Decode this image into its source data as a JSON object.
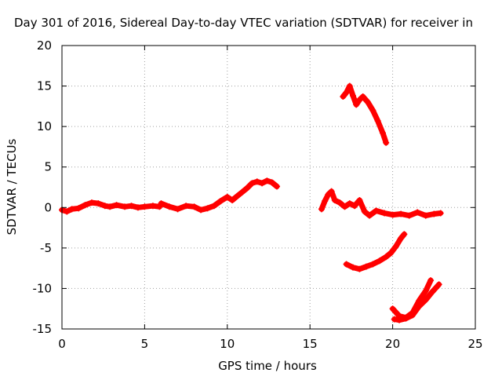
{
  "chart_data": {
    "type": "scatter",
    "title": "Day 301 of 2016, Sidereal Day-to-day VTEC variation (SDTVAR) for receiver in",
    "xlabel": "GPS time / hours",
    "ylabel": "SDTVAR / TECUs",
    "xlim": [
      0,
      25
    ],
    "ylim": [
      -15,
      20
    ],
    "xticks": [
      0,
      5,
      10,
      15,
      20,
      25
    ],
    "yticks": [
      -15,
      -10,
      -5,
      0,
      5,
      10,
      15,
      20
    ],
    "grid": true,
    "legend": "none",
    "color": "#ff0000",
    "series": [
      {
        "x": [
          0,
          0.3,
          0.6,
          1.0,
          1.4,
          1.8,
          2.2,
          2.6,
          2.9,
          3.3,
          3.8,
          4.2,
          4.6,
          5.0,
          5.5,
          5.9
        ],
        "y": [
          -0.3,
          -0.5,
          -0.2,
          -0.1,
          0.3,
          0.6,
          0.5,
          0.2,
          0.1,
          0.3,
          0.1,
          0.2,
          0.0,
          0.1,
          0.2,
          0.1
        ]
      },
      {
        "x": [
          6.0,
          6.5,
          7.0,
          7.5,
          8.0,
          8.4,
          8.8,
          9.2,
          9.6,
          10.0,
          10.3,
          10.6,
          10.9,
          11.2,
          11.5,
          11.8,
          12.1,
          12.4,
          12.7,
          13.0
        ],
        "y": [
          0.5,
          0.1,
          -0.2,
          0.2,
          0.1,
          -0.3,
          -0.1,
          0.2,
          0.8,
          1.3,
          0.9,
          1.4,
          1.9,
          2.4,
          3.0,
          3.2,
          3.0,
          3.3,
          3.1,
          2.6
        ]
      },
      {
        "x": [
          15.7,
          15.9,
          16.1,
          16.3,
          16.5,
          16.8,
          17.1,
          17.4,
          17.7,
          18.0,
          18.3,
          18.6,
          19.0,
          19.5,
          20.0,
          20.5,
          21.0,
          21.5,
          22.0,
          22.5,
          22.9
        ],
        "y": [
          -0.2,
          0.8,
          1.6,
          2.0,
          0.9,
          0.6,
          0.1,
          0.5,
          0.2,
          0.9,
          -0.5,
          -1.0,
          -0.4,
          -0.7,
          -0.9,
          -0.8,
          -1.0,
          -0.6,
          -1.0,
          -0.8,
          -0.7
        ]
      },
      {
        "x": [
          17.0,
          17.2,
          17.4,
          17.6,
          17.8,
          18.0,
          18.2,
          18.5,
          18.8,
          19.1,
          19.4,
          19.6
        ],
        "y": [
          13.7,
          14.2,
          15.0,
          13.8,
          12.7,
          13.3,
          13.7,
          13.0,
          12.0,
          10.7,
          9.2,
          8.0
        ]
      },
      {
        "x": [
          17.2,
          17.6,
          18.0,
          18.4,
          18.8,
          19.2,
          19.6,
          19.9,
          20.2,
          20.5,
          20.7
        ],
        "y": [
          -7.0,
          -7.4,
          -7.6,
          -7.3,
          -7.0,
          -6.6,
          -6.1,
          -5.6,
          -4.8,
          -3.8,
          -3.3
        ]
      },
      {
        "x": [
          20.1,
          20.4,
          20.8,
          21.2,
          21.6,
          22.0,
          22.4,
          22.8
        ],
        "y": [
          -13.8,
          -13.9,
          -13.7,
          -13.3,
          -12.2,
          -11.4,
          -10.4,
          -9.5
        ]
      },
      {
        "x": [
          20.0,
          20.4,
          20.8,
          21.2,
          21.6,
          22.0,
          22.3
        ],
        "y": [
          -12.5,
          -13.4,
          -13.6,
          -13.0,
          -11.5,
          -10.3,
          -9.0
        ]
      }
    ]
  }
}
